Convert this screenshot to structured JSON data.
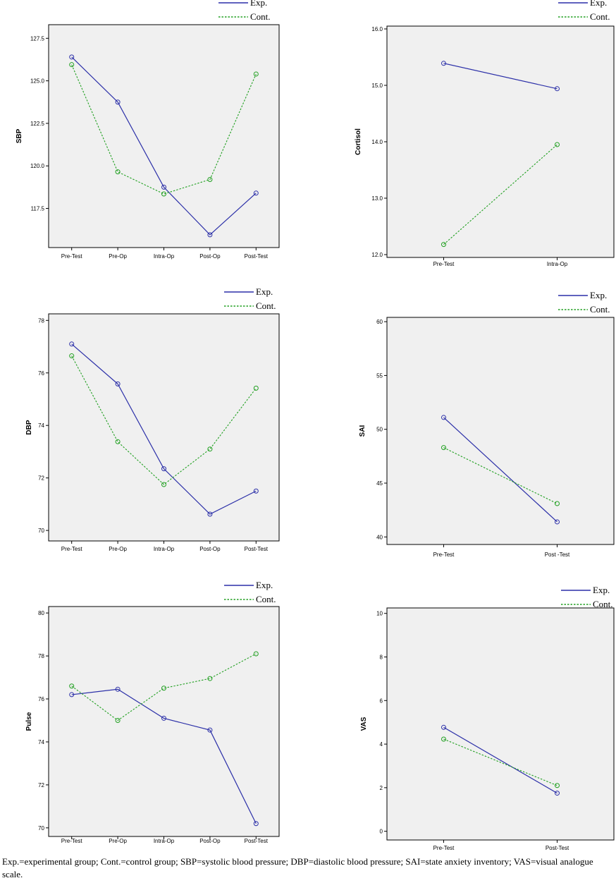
{
  "caption": "Exp.=experimental group; Cont.=control group; SBP=systolic blood pressure; DBP=diastolic blood pressure; SAI=state anxiety inventory; VAS=visual analogue scale.",
  "colors": {
    "exp": "#2b2fa8",
    "cont": "#22a022",
    "plot_bg": "#f0f0f0"
  },
  "chart_data": [
    {
      "type": "line",
      "legend_position": "top-right",
      "ylabel": "SBP",
      "categories": [
        "Pre-Test",
        "Pre-Op",
        "Intra-Op",
        "Post-Op",
        "Post-Test"
      ],
      "ylim": [
        115.2,
        128.3
      ],
      "yticks": [
        117.5,
        120.0,
        122.5,
        125.0,
        127.5
      ],
      "ytick_labels": [
        "117.5",
        "120.0",
        "122.5",
        "125.0",
        "127.5"
      ],
      "series": [
        {
          "name": "Exp.",
          "style": "solid",
          "values": [
            126.4,
            123.75,
            118.75,
            115.95,
            118.4
          ]
        },
        {
          "name": "Cont.",
          "style": "dotted",
          "values": [
            125.95,
            119.65,
            118.35,
            119.2,
            125.4
          ]
        }
      ]
    },
    {
      "type": "line",
      "legend_position": "top-right",
      "ylabel": "Cortisol",
      "categories": [
        "Pre-Test",
        "Intra-Op"
      ],
      "ylim": [
        11.95,
        16.05
      ],
      "yticks": [
        12.0,
        13.0,
        14.0,
        15.0,
        16.0
      ],
      "ytick_labels": [
        "12.0",
        "13.0",
        "14.0",
        "15.0",
        "16.0"
      ],
      "series": [
        {
          "name": "Exp.",
          "style": "solid",
          "values": [
            15.39,
            14.94
          ]
        },
        {
          "name": "Cont.",
          "style": "dotted",
          "values": [
            12.18,
            13.95
          ]
        }
      ]
    },
    {
      "type": "line",
      "legend_position": "top-right",
      "ylabel": "DBP",
      "categories": [
        "Pre-Test",
        "Pre-Op",
        "Intra-Op",
        "Post-Op",
        "Post-Test"
      ],
      "ylim": [
        69.6,
        78.25
      ],
      "yticks": [
        70,
        72,
        74,
        76,
        78
      ],
      "ytick_labels": [
        "70",
        "72",
        "74",
        "76",
        "78"
      ],
      "series": [
        {
          "name": "Exp.",
          "style": "solid",
          "values": [
            77.1,
            75.58,
            72.35,
            70.62,
            71.5
          ]
        },
        {
          "name": "Cont.",
          "style": "dotted",
          "values": [
            76.65,
            73.38,
            71.75,
            73.1,
            75.42
          ]
        }
      ]
    },
    {
      "type": "line",
      "legend_position": "top-right",
      "ylabel": "SAI",
      "categories": [
        "Pre-Test",
        "Post -Test"
      ],
      "ylim": [
        39.3,
        60.4
      ],
      "yticks": [
        40,
        45,
        50,
        55,
        60
      ],
      "ytick_labels": [
        "40",
        "45",
        "50",
        "55",
        "60"
      ],
      "series": [
        {
          "name": "Exp.",
          "style": "solid",
          "values": [
            51.1,
            41.4
          ]
        },
        {
          "name": "Cont.",
          "style": "dotted",
          "values": [
            48.3,
            43.1
          ]
        }
      ]
    },
    {
      "type": "line",
      "legend_position": "top-right",
      "ylabel": "Pulse",
      "categories": [
        "Pre-Test",
        "Pre-Op",
        "Intra-Op",
        "Post-Op",
        "Post-Test"
      ],
      "ylim": [
        69.6,
        80.3
      ],
      "yticks": [
        70,
        72,
        74,
        76,
        78,
        80
      ],
      "ytick_labels": [
        "70",
        "72",
        "74",
        "76",
        "78",
        "80"
      ],
      "series": [
        {
          "name": "Exp.",
          "style": "solid",
          "values": [
            76.2,
            76.45,
            75.1,
            74.55,
            70.2
          ]
        },
        {
          "name": "Cont.",
          "style": "dotted",
          "values": [
            76.6,
            75.0,
            76.5,
            76.95,
            78.1
          ]
        }
      ]
    },
    {
      "type": "line",
      "legend_position": "top-right",
      "ylabel": "VAS",
      "categories": [
        "Pre-Test",
        "Post-Test"
      ],
      "ylim": [
        -0.4,
        10.25
      ],
      "yticks": [
        0,
        2,
        4,
        6,
        8,
        10
      ],
      "ytick_labels": [
        "0",
        "2",
        "4",
        "6",
        "8",
        "10"
      ],
      "series": [
        {
          "name": "Exp.",
          "style": "solid",
          "values": [
            4.77,
            1.75
          ]
        },
        {
          "name": "Cont.",
          "style": "dotted",
          "values": [
            4.23,
            2.1
          ]
        }
      ]
    }
  ]
}
